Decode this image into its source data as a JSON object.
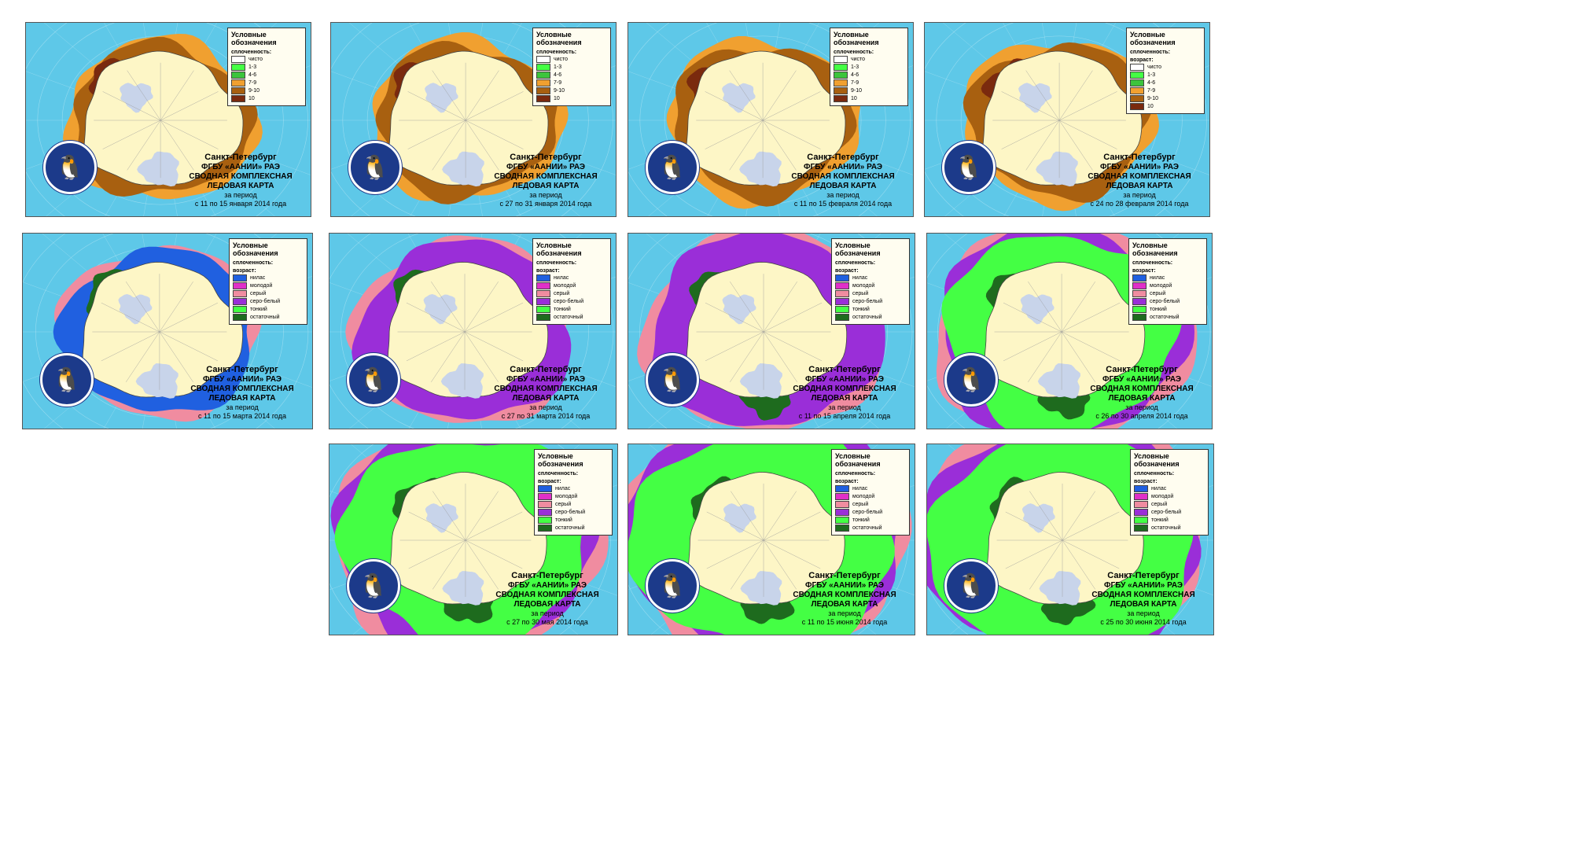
{
  "panels": [
    {
      "legend_title": "Условные обозначения",
      "group_top": "",
      "group_bottom": "сплоченность:",
      "date": "с 11 по 15 января 2014 года",
      "scheme": "conc",
      "stage": 1
    },
    {
      "legend_title": "Условные обозначения",
      "group_top": "",
      "group_bottom": "сплоченность:",
      "date": "с 27 по 31 января 2014 года",
      "scheme": "conc",
      "stage": 0
    },
    {
      "legend_title": "Условные обозначения",
      "group_top": "",
      "group_bottom": "сплоченность:",
      "date": "с 11 по 15 февраля 2014 года",
      "scheme": "conc",
      "stage": 0
    },
    {
      "legend_title": "Условные обозначения",
      "group_top": "сплоченность:",
      "group_bottom": "возраст:",
      "date": "с 24 по 28 февраля 2014 года",
      "scheme": "conc",
      "stage": 0
    },
    {
      "legend_title": "Условные обозначения",
      "group_top": "сплоченность:",
      "group_bottom": "возраст:",
      "date": "с 11 по 15 марта 2014 года",
      "scheme": "age",
      "stage": 1
    },
    {
      "legend_title": "Условные обозначения",
      "group_top": "сплоченность:",
      "group_bottom": "возраст:",
      "date": "с 27 по 31 марта 2014 года",
      "scheme": "age",
      "stage": 2
    },
    {
      "legend_title": "Условные обозначения",
      "group_top": "сплоченность:",
      "group_bottom": "возраст:",
      "date": "с 11 по 15 апреля 2014 года",
      "scheme": "age",
      "stage": 3
    },
    {
      "legend_title": "Условные обозначения",
      "group_top": "сплоченность:",
      "group_bottom": "возраст:",
      "date": "с 26 по 30 апреля 2014 года",
      "scheme": "age",
      "stage": 4
    },
    {
      "legend_title": "Условные обозначения",
      "group_top": "сплоченность:",
      "group_bottom": "возраст:",
      "date": "с 27 по 30 мая 2014 года",
      "scheme": "age",
      "stage": 5
    },
    {
      "legend_title": "Условные обозначения",
      "group_top": "сплоченность:",
      "group_bottom": "возраст:",
      "date": "с 11 по 15 июня 2014 года",
      "scheme": "age",
      "stage": 6
    },
    {
      "legend_title": "Условные обозначения",
      "group_top": "сплоченность:",
      "group_bottom": "возраст:",
      "date": "с 25 по 30 июня 2014 года",
      "scheme": "age",
      "stage": 6
    }
  ],
  "caption": {
    "city": "Санкт-Петербург",
    "org": "ФГБУ «ААНИИ» РАЭ",
    "title1": "СВОДНАЯ КОМПЛЕКСНАЯ",
    "title2": "ЛЕДОВАЯ КАРТА",
    "period": "за период"
  },
  "colors": {
    "ocean": "#5ec8e8",
    "land": "#fdf6c6",
    "shelf": "#c8d4ea",
    "conc_light": "#f0a030",
    "conc_mid": "#a86010",
    "conc_dark": "#7a2a0e",
    "green": "#3cc43c",
    "dark_green": "#1e6b1e",
    "purple": "#9a2ed8",
    "magenta": "#e030c8",
    "pink": "#f08ca0",
    "blue": "#2060e0",
    "light_green": "#44ff44"
  }
}
